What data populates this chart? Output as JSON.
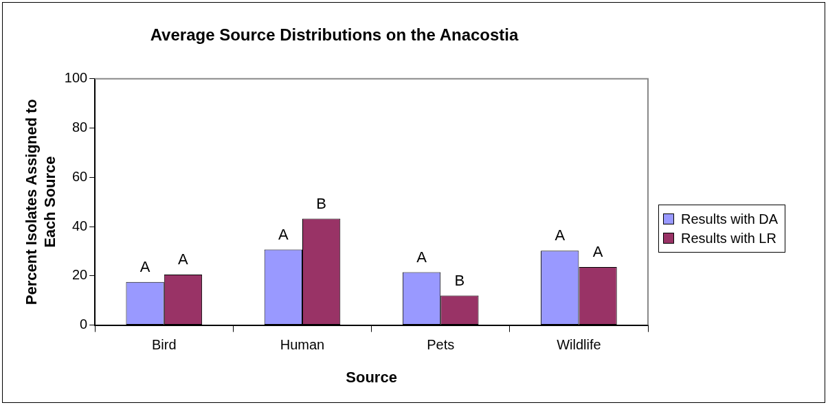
{
  "chart_data": {
    "type": "bar",
    "title": "Average Source Distributions on the Anacostia",
    "xlabel": "Source",
    "ylabel": "Percent Isolates Assigned to Each Source",
    "categories": [
      "Bird",
      "Human",
      "Pets",
      "Wildlife"
    ],
    "series": [
      {
        "name": "Results with DA",
        "color": "#9999ff",
        "values": [
          17.5,
          30.7,
          21.5,
          30.2
        ],
        "value_labels": [
          "A",
          "A",
          "A",
          "A"
        ]
      },
      {
        "name": "Results with LR",
        "color": "#993366",
        "values": [
          20.5,
          43.2,
          12.0,
          23.6
        ],
        "value_labels": [
          "A",
          "B",
          "B",
          "A"
        ]
      }
    ],
    "ylim": [
      0,
      100
    ],
    "yticks": [
      0,
      20,
      40,
      60,
      80,
      100
    ],
    "grid": false,
    "legend": "right"
  }
}
